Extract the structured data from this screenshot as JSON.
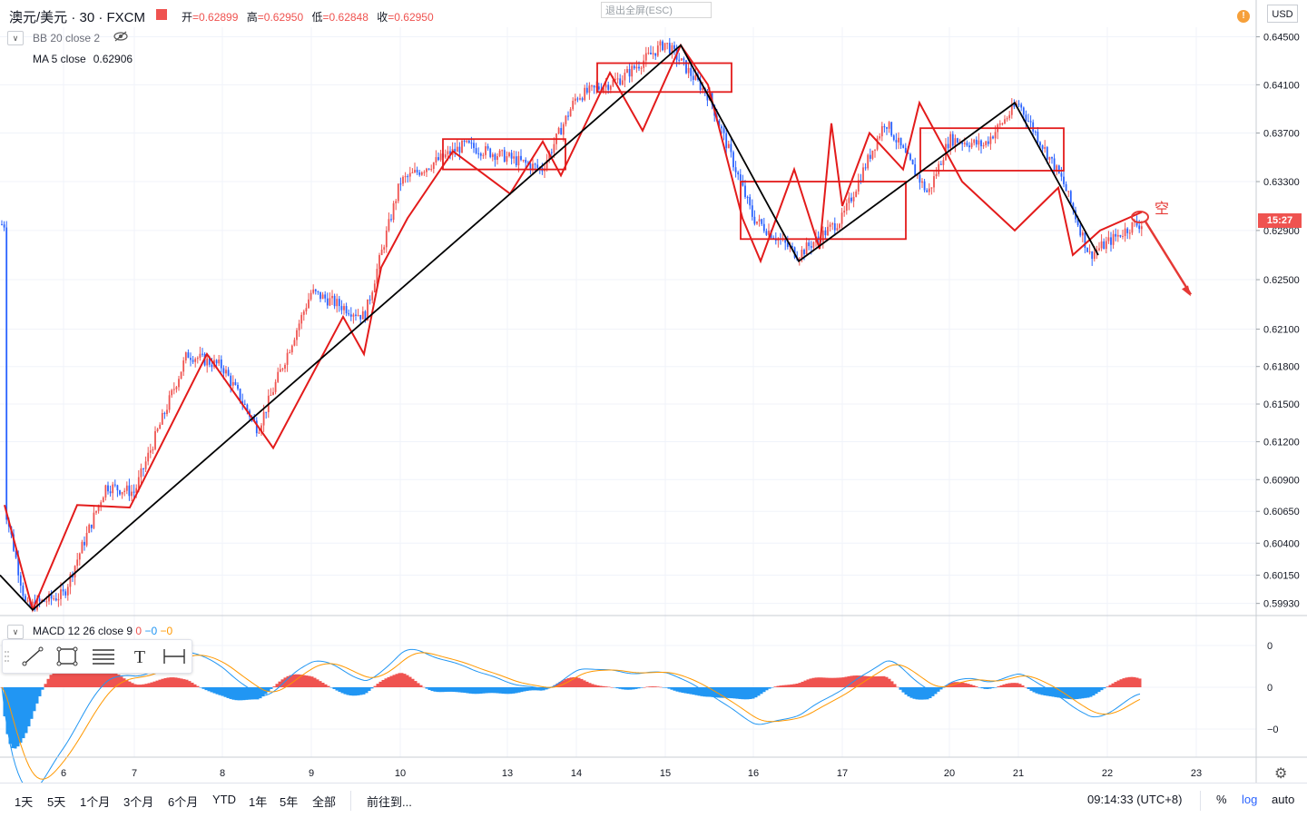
{
  "header": {
    "symbol": "澳元/美元 · 30 · FXCM",
    "ohlc": [
      {
        "k": "开",
        "v": "=0.62899"
      },
      {
        "k": "高",
        "v": "=0.62950"
      },
      {
        "k": "低",
        "v": "=0.62848"
      },
      {
        "k": "收",
        "v": "=0.62950"
      }
    ],
    "exit_fullscreen": "退出全屏(ESC)",
    "alert_icon": "!",
    "currency": "USD"
  },
  "indicators": {
    "bb": "BB 20 close 2",
    "ma_name": "MA 5 close",
    "ma_value": "0.62906",
    "macd_name": "MACD 12 26 close 9",
    "macd_values": [
      "0",
      "−0",
      "−0"
    ]
  },
  "price_tag": "15:27",
  "annotation": "空",
  "macd_axis": [
    "0",
    "0",
    "−0"
  ],
  "bottom_bar": {
    "ranges": [
      "1天",
      "5天",
      "1个月",
      "3个月",
      "6个月",
      "YTD",
      "1年",
      "5年",
      "全部"
    ],
    "goto": "前往到...",
    "clock": "09:14:33 (UTC+8)",
    "percent": "%",
    "log": "log",
    "auto": "auto"
  },
  "colors": {
    "up": "#ef5350",
    "down": "#2962ff",
    "zigzag_small": "#e31b1b",
    "zigzag_large": "#000000",
    "macd_line": "#2196f3",
    "signal_line": "#ff9800"
  },
  "chart_data": [
    {
      "type": "candlestick",
      "title": "澳元/美元 · 30 · FXCM",
      "y_scale": "log",
      "y_ticks": [
        "0.64500",
        "0.64100",
        "0.63700",
        "0.63300",
        "0.62900",
        "0.62500",
        "0.62100",
        "0.61800",
        "0.61500",
        "0.61200",
        "0.60900",
        "0.60650",
        "0.60400",
        "0.60150",
        "0.59930"
      ],
      "ylim": [
        0.5985,
        0.6458
      ],
      "x_ticks": [
        "6",
        "7",
        "8",
        "9",
        "10",
        "13",
        "14",
        "15",
        "16",
        "17",
        "20",
        "21",
        "22",
        "23"
      ],
      "price_path": [
        {
          "x": "5",
          "y": 0.607
        },
        {
          "x": "5.4",
          "y": 0.599
        },
        {
          "x": "6",
          "y": 0.6
        },
        {
          "x": "6.6",
          "y": 0.6085
        },
        {
          "x": "7",
          "y": 0.608
        },
        {
          "x": "7.6",
          "y": 0.619
        },
        {
          "x": "8",
          "y": 0.618
        },
        {
          "x": "8.4",
          "y": 0.613
        },
        {
          "x": "9",
          "y": 0.624
        },
        {
          "x": "9.6",
          "y": 0.622
        },
        {
          "x": "10",
          "y": 0.633
        },
        {
          "x": "10.6",
          "y": 0.636
        },
        {
          "x": "13",
          "y": 0.635
        },
        {
          "x": "13.5",
          "y": 0.634
        },
        {
          "x": "14",
          "y": 0.64
        },
        {
          "x": "14.5",
          "y": 0.6415
        },
        {
          "x": "15",
          "y": 0.6445
        },
        {
          "x": "15.5",
          "y": 0.64
        },
        {
          "x": "16",
          "y": 0.63
        },
        {
          "x": "16.5",
          "y": 0.627
        },
        {
          "x": "17",
          "y": 0.63
        },
        {
          "x": "17.4",
          "y": 0.638
        },
        {
          "x": "17.8",
          "y": 0.632
        },
        {
          "x": "20",
          "y": 0.6365
        },
        {
          "x": "20.5",
          "y": 0.636
        },
        {
          "x": "21",
          "y": 0.6395
        },
        {
          "x": "21.5",
          "y": 0.633
        },
        {
          "x": "21.8",
          "y": 0.627
        },
        {
          "x": "22",
          "y": 0.628
        },
        {
          "x": "22.3",
          "y": 0.6295
        }
      ],
      "zigzag_small": [
        [
          0.607,
          0.5988,
          0.607,
          0.6068,
          0.619,
          0.6115,
          0.622,
          0.619,
          0.626,
          0.63,
          0.6355,
          0.632,
          0.6363,
          0.6335,
          0.642,
          0.6372,
          0.6443,
          0.641,
          0.63,
          0.6265,
          0.634,
          0.6275,
          0.6378,
          0.631,
          0.637,
          0.634,
          0.6395,
          0.633,
          0.629,
          0.6325,
          0.627,
          0.629,
          0.6305
        ]
      ],
      "zigzag_large": [
        0.5988,
        0.6443,
        0.6265,
        0.6395,
        0.627
      ],
      "boxes": [
        {
          "from": 0.6365,
          "to": 0.634
        },
        {
          "from": 0.6428,
          "to": 0.6404
        },
        {
          "from": 0.633,
          "to": 0.6283
        },
        {
          "from": 0.6374,
          "to": 0.6339
        }
      ]
    },
    {
      "type": "macd",
      "title": "MACD 12 26 close 9",
      "y_ticks": [
        "0",
        "0",
        "−0"
      ],
      "series": [
        {
          "name": "MACD",
          "color": "#2196f3"
        },
        {
          "name": "Signal",
          "color": "#ff9800"
        }
      ]
    }
  ]
}
